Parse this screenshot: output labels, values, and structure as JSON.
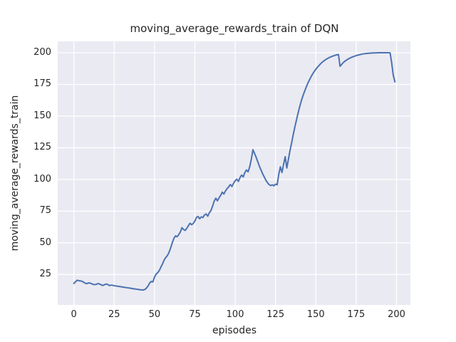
{
  "figure": {
    "background": "#ffffff"
  },
  "chart_data": {
    "type": "line",
    "title": "moving_average_rewards_train of DQN",
    "xlabel": "episodes",
    "ylabel": "moving_average_rewards_train",
    "x_ticks": [
      0,
      25,
      50,
      75,
      100,
      125,
      150,
      175,
      200
    ],
    "y_ticks": [
      25,
      50,
      75,
      100,
      125,
      150,
      175,
      200
    ],
    "xlim": [
      -10,
      208.6
    ],
    "ylim": [
      1,
      209
    ],
    "grid": true,
    "legend": "none",
    "style": {
      "axes_background": "#eaeaf2",
      "gridline_color": "#ffffff",
      "line_color": "#4c72b0",
      "text_color": "#262626"
    },
    "series": [
      {
        "name": "moving_average_rewards_train",
        "points": [
          [
            0,
            18
          ],
          [
            1,
            19.2
          ],
          [
            2,
            20.5
          ],
          [
            3,
            20.2
          ],
          [
            4,
            20
          ],
          [
            5,
            19.7
          ],
          [
            6,
            19
          ],
          [
            7,
            18.2
          ],
          [
            8,
            17.8
          ],
          [
            9,
            18.4
          ],
          [
            10,
            18.2
          ],
          [
            11,
            17.8
          ],
          [
            12,
            17.2
          ],
          [
            13,
            17
          ],
          [
            14,
            17.3
          ],
          [
            15,
            17.9
          ],
          [
            16,
            17.5
          ],
          [
            17,
            16.8
          ],
          [
            18,
            16.4
          ],
          [
            19,
            17
          ],
          [
            20,
            17.5
          ],
          [
            21,
            17.2
          ],
          [
            22,
            16.3
          ],
          [
            23,
            16.7
          ],
          [
            24,
            16.5
          ],
          [
            25,
            16.2
          ],
          [
            26,
            16
          ],
          [
            27,
            15.8
          ],
          [
            28,
            15.6
          ],
          [
            29,
            15.4
          ],
          [
            30,
            15.2
          ],
          [
            31,
            15
          ],
          [
            32,
            14.8
          ],
          [
            33,
            14.6
          ],
          [
            34,
            14.4
          ],
          [
            35,
            14.2
          ],
          [
            36,
            14
          ],
          [
            37,
            13.8
          ],
          [
            38,
            13.6
          ],
          [
            39,
            13.4
          ],
          [
            40,
            13.2
          ],
          [
            41,
            13
          ],
          [
            42,
            12.9
          ],
          [
            43,
            12.8
          ],
          [
            44,
            13.2
          ],
          [
            45,
            14.3
          ],
          [
            46,
            16
          ],
          [
            47,
            18.3
          ],
          [
            48,
            19.6
          ],
          [
            49,
            19.2
          ],
          [
            50,
            23
          ],
          [
            51,
            25.3
          ],
          [
            52,
            26.5
          ],
          [
            53,
            28.2
          ],
          [
            54,
            31
          ],
          [
            55,
            33.5
          ],
          [
            56,
            36.5
          ],
          [
            57,
            38.5
          ],
          [
            58,
            40
          ],
          [
            59,
            42.5
          ],
          [
            60,
            46
          ],
          [
            61,
            50
          ],
          [
            62,
            53.5
          ],
          [
            63,
            55.5
          ],
          [
            64,
            54.8
          ],
          [
            65,
            56.5
          ],
          [
            66,
            58.5
          ],
          [
            67,
            62
          ],
          [
            68,
            60.5
          ],
          [
            69,
            59.8
          ],
          [
            70,
            61.5
          ],
          [
            71,
            63.5
          ],
          [
            72,
            65.5
          ],
          [
            73,
            64.3
          ],
          [
            74,
            65.3
          ],
          [
            75,
            67.2
          ],
          [
            76,
            70
          ],
          [
            77,
            70.8
          ],
          [
            78,
            69
          ],
          [
            79,
            70.5
          ],
          [
            80,
            70
          ],
          [
            81,
            72
          ],
          [
            82,
            72.8
          ],
          [
            83,
            71
          ],
          [
            84,
            73.8
          ],
          [
            85,
            75.5
          ],
          [
            86,
            79
          ],
          [
            87,
            83
          ],
          [
            88,
            85.2
          ],
          [
            89,
            83.2
          ],
          [
            90,
            85.5
          ],
          [
            91,
            87.5
          ],
          [
            92,
            90
          ],
          [
            93,
            88.5
          ],
          [
            94,
            91
          ],
          [
            95,
            92.8
          ],
          [
            96,
            94.2
          ],
          [
            97,
            96
          ],
          [
            98,
            94.5
          ],
          [
            99,
            97
          ],
          [
            100,
            99
          ],
          [
            101,
            100.2
          ],
          [
            102,
            98.5
          ],
          [
            103,
            101.5
          ],
          [
            104,
            103.5
          ],
          [
            105,
            102
          ],
          [
            106,
            105.5
          ],
          [
            107,
            107.5
          ],
          [
            108,
            106
          ],
          [
            109,
            110
          ],
          [
            110,
            116
          ],
          [
            111,
            123.5
          ],
          [
            112,
            120.5
          ],
          [
            113,
            117.5
          ],
          [
            114,
            114
          ],
          [
            115,
            110.5
          ],
          [
            116,
            107.5
          ],
          [
            117,
            104.5
          ],
          [
            118,
            102
          ],
          [
            119,
            99.5
          ],
          [
            120,
            97.5
          ],
          [
            121,
            96
          ],
          [
            122,
            95.2
          ],
          [
            123,
            95.8
          ],
          [
            124,
            95
          ],
          [
            125,
            96.3
          ],
          [
            126,
            95.8
          ],
          [
            127,
            104
          ],
          [
            128,
            110
          ],
          [
            129,
            105.5
          ],
          [
            130,
            112
          ],
          [
            131,
            118
          ],
          [
            132,
            109
          ],
          [
            133,
            116
          ],
          [
            134,
            123
          ],
          [
            135,
            129
          ],
          [
            136,
            135.5
          ],
          [
            137,
            141.5
          ],
          [
            138,
            147
          ],
          [
            139,
            152.5
          ],
          [
            140,
            157.5
          ],
          [
            141,
            162
          ],
          [
            142,
            166
          ],
          [
            143,
            169.5
          ],
          [
            144,
            172.8
          ],
          [
            145,
            175.8
          ],
          [
            146,
            178.5
          ],
          [
            147,
            181
          ],
          [
            148,
            183.2
          ],
          [
            149,
            185.2
          ],
          [
            150,
            187
          ],
          [
            151,
            188.6
          ],
          [
            152,
            190
          ],
          [
            153,
            191.4
          ],
          [
            154,
            192.6
          ],
          [
            155,
            193.6
          ],
          [
            156,
            194.5
          ],
          [
            157,
            195.3
          ],
          [
            158,
            196
          ],
          [
            159,
            196.6
          ],
          [
            160,
            197.1
          ],
          [
            161,
            197.6
          ],
          [
            162,
            198
          ],
          [
            163,
            198.3
          ],
          [
            164,
            198.6
          ],
          [
            165,
            189.3
          ],
          [
            166,
            190.8
          ],
          [
            167,
            192.2
          ],
          [
            168,
            193.3
          ],
          [
            169,
            194.2
          ],
          [
            170,
            195
          ],
          [
            171,
            195.7
          ],
          [
            172,
            196.3
          ],
          [
            173,
            196.8
          ],
          [
            174,
            197.3
          ],
          [
            175,
            197.7
          ],
          [
            176,
            198.1
          ],
          [
            177,
            198.4
          ],
          [
            178,
            198.7
          ],
          [
            179,
            199
          ],
          [
            180,
            199.2
          ],
          [
            181,
            199.4
          ],
          [
            182,
            199.5
          ],
          [
            183,
            199.6
          ],
          [
            184,
            199.7
          ],
          [
            185,
            199.8
          ],
          [
            186,
            199.85
          ],
          [
            187,
            199.9
          ],
          [
            188,
            199.95
          ],
          [
            189,
            200
          ],
          [
            190,
            200
          ],
          [
            191,
            200
          ],
          [
            192,
            200
          ],
          [
            193,
            200
          ],
          [
            194,
            200
          ],
          [
            195,
            200
          ],
          [
            196,
            199.9
          ],
          [
            197,
            192
          ],
          [
            198,
            182
          ],
          [
            199,
            177
          ]
        ]
      }
    ]
  }
}
